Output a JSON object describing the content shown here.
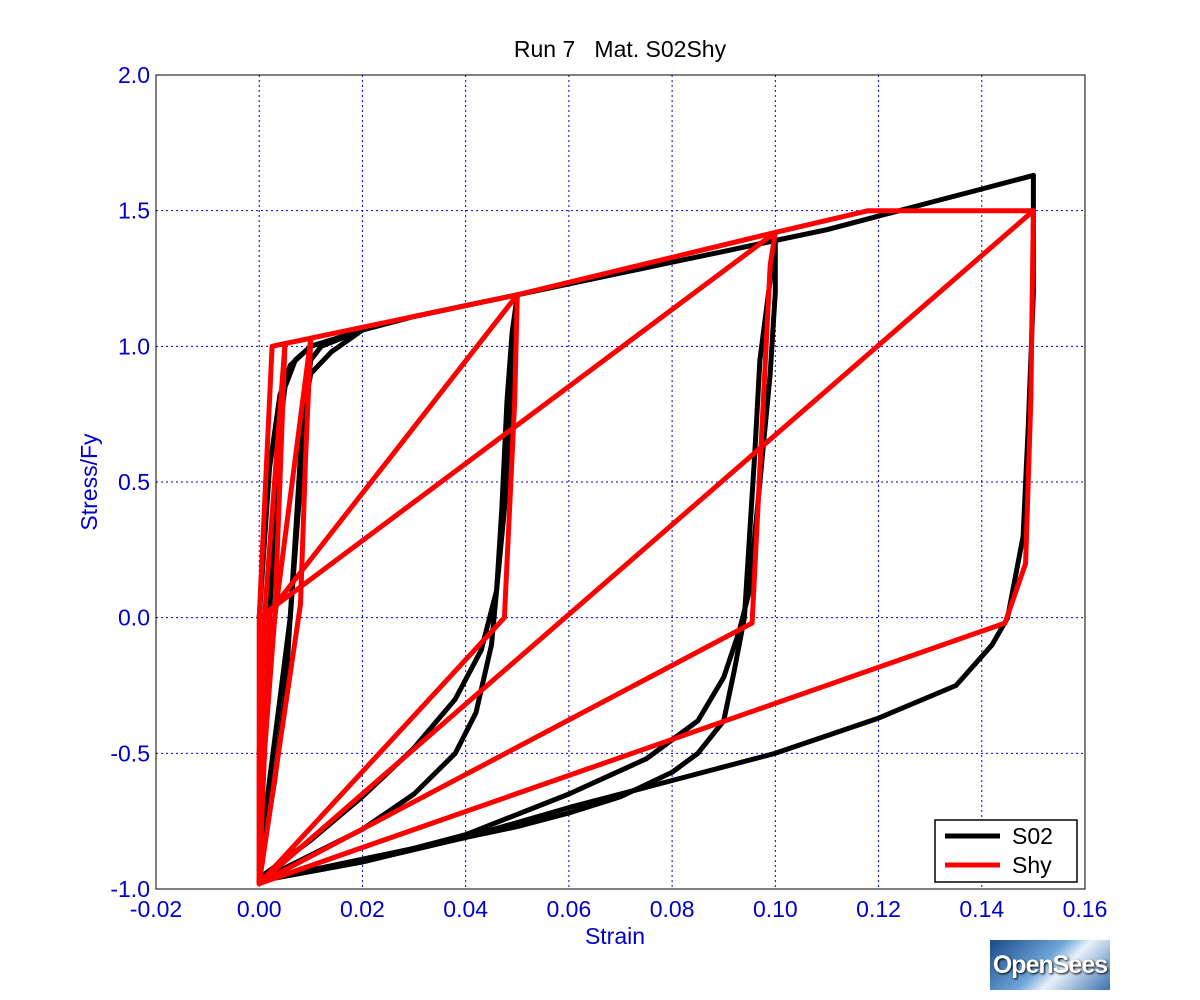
{
  "chart_data": {
    "type": "line",
    "title": "Run 7   Mat. S02Shy",
    "xlabel": "Strain",
    "ylabel": "Stress/Fy",
    "xlim": [
      -0.02,
      0.16
    ],
    "ylim": [
      -1.0,
      2.0
    ],
    "xticks": [
      "-0.02",
      "0.00",
      "0.02",
      "0.04",
      "0.06",
      "0.08",
      "0.10",
      "0.12",
      "0.14",
      "0.16"
    ],
    "yticks": [
      "-1.0",
      "-0.5",
      "0.0",
      "0.5",
      "1.0",
      "1.5",
      "2.0"
    ],
    "grid": true,
    "legend_position": "bottom-right",
    "series": [
      {
        "name": "S02",
        "color": "#000000",
        "curves": [
          [
            [
              0.0,
              0.0
            ],
            [
              0.002,
              0.55
            ],
            [
              0.004,
              0.82
            ],
            [
              0.006,
              0.93
            ],
            [
              0.01,
              1.0
            ],
            [
              0.015,
              1.03
            ],
            [
              0.02,
              1.06
            ],
            [
              0.03,
              1.11
            ],
            [
              0.04,
              1.15
            ],
            [
              0.05,
              1.19
            ],
            [
              0.06,
              1.23
            ],
            [
              0.07,
              1.27
            ],
            [
              0.08,
              1.31
            ],
            [
              0.09,
              1.35
            ],
            [
              0.1,
              1.39
            ],
            [
              0.11,
              1.43
            ],
            [
              0.12,
              1.48
            ],
            [
              0.13,
              1.53
            ],
            [
              0.14,
              1.58
            ],
            [
              0.15,
              1.63
            ]
          ],
          [
            [
              0.15,
              1.63
            ],
            [
              0.15,
              1.2
            ],
            [
              0.149,
              0.7
            ],
            [
              0.148,
              0.3
            ],
            [
              0.145,
              0.0
            ],
            [
              0.142,
              -0.1
            ],
            [
              0.135,
              -0.25
            ],
            [
              0.12,
              -0.37
            ],
            [
              0.1,
              -0.5
            ],
            [
              0.08,
              -0.6
            ],
            [
              0.06,
              -0.7
            ],
            [
              0.04,
              -0.81
            ],
            [
              0.02,
              -0.9
            ],
            [
              0.0,
              -0.97
            ]
          ],
          [
            [
              0.0,
              -0.97
            ],
            [
              0.03,
              -0.85
            ],
            [
              0.05,
              -0.77
            ],
            [
              0.06,
              -0.72
            ],
            [
              0.07,
              -0.66
            ],
            [
              0.08,
              -0.57
            ],
            [
              0.085,
              -0.5
            ],
            [
              0.09,
              -0.38
            ],
            [
              0.092,
              -0.2
            ],
            [
              0.094,
              0.0
            ],
            [
              0.095,
              0.3
            ],
            [
              0.096,
              0.6
            ],
            [
              0.097,
              0.95
            ],
            [
              0.1,
              1.39
            ]
          ],
          [
            [
              0.1,
              1.39
            ],
            [
              0.1,
              1.2
            ],
            [
              0.099,
              0.9
            ],
            [
              0.097,
              0.5
            ],
            [
              0.095,
              0.1
            ],
            [
              0.093,
              -0.05
            ],
            [
              0.09,
              -0.22
            ],
            [
              0.085,
              -0.38
            ],
            [
              0.075,
              -0.52
            ],
            [
              0.06,
              -0.65
            ],
            [
              0.04,
              -0.8
            ],
            [
              0.02,
              -0.9
            ],
            [
              0.0,
              -0.97
            ]
          ],
          [
            [
              0.0,
              -0.97
            ],
            [
              0.02,
              -0.78
            ],
            [
              0.03,
              -0.65
            ],
            [
              0.038,
              -0.5
            ],
            [
              0.042,
              -0.35
            ],
            [
              0.045,
              -0.1
            ],
            [
              0.046,
              0.1
            ],
            [
              0.047,
              0.4
            ],
            [
              0.048,
              0.8
            ],
            [
              0.049,
              1.05
            ],
            [
              0.05,
              1.19
            ]
          ],
          [
            [
              0.05,
              1.19
            ],
            [
              0.049,
              0.9
            ],
            [
              0.048,
              0.5
            ],
            [
              0.046,
              0.1
            ],
            [
              0.043,
              -0.12
            ],
            [
              0.038,
              -0.3
            ],
            [
              0.03,
              -0.48
            ],
            [
              0.02,
              -0.66
            ],
            [
              0.01,
              -0.82
            ],
            [
              0.0,
              -0.96
            ]
          ],
          [
            [
              0.0,
              -0.96
            ],
            [
              0.003,
              -0.6
            ],
            [
              0.005,
              -0.3
            ],
            [
              0.006,
              0.0
            ],
            [
              0.007,
              0.3
            ],
            [
              0.008,
              0.6
            ],
            [
              0.009,
              0.8
            ],
            [
              0.01,
              0.9
            ],
            [
              0.014,
              0.98
            ],
            [
              0.02,
              1.06
            ]
          ],
          [
            [
              0.02,
              1.06
            ],
            [
              0.012,
              1.0
            ],
            [
              0.01,
              0.95
            ],
            [
              0.009,
              0.8
            ],
            [
              0.008,
              0.5
            ],
            [
              0.006,
              0.0
            ],
            [
              0.004,
              -0.3
            ],
            [
              0.002,
              -0.6
            ],
            [
              0.0,
              -0.93
            ]
          ],
          [
            [
              0.0,
              -0.93
            ],
            [
              0.001,
              -0.5
            ],
            [
              0.002,
              0.0
            ],
            [
              0.003,
              0.4
            ],
            [
              0.004,
              0.7
            ],
            [
              0.005,
              0.85
            ],
            [
              0.007,
              0.95
            ],
            [
              0.01,
              1.0
            ]
          ]
        ]
      },
      {
        "name": "Shy",
        "color": "#ff0000",
        "curves": [
          [
            [
              0.0,
              0.0
            ],
            [
              0.0025,
              1.0
            ],
            [
              0.005,
              1.01
            ],
            [
              0.01,
              1.03
            ],
            [
              0.05,
              1.19
            ],
            [
              0.1,
              1.42
            ],
            [
              0.118,
              1.5
            ],
            [
              0.15,
              1.5
            ]
          ],
          [
            [
              0.15,
              1.5
            ],
            [
              0.1495,
              0.8
            ],
            [
              0.1485,
              0.2
            ],
            [
              0.1445,
              -0.02
            ],
            [
              0.0,
              -0.98
            ]
          ],
          [
            [
              0.0,
              -0.98
            ],
            [
              0.15,
              1.5
            ]
          ],
          [
            [
              0.0,
              -0.98
            ],
            [
              0.0,
              0.0
            ],
            [
              0.1,
              1.42
            ]
          ],
          [
            [
              0.1,
              1.42
            ],
            [
              0.099,
              1.3
            ],
            [
              0.0955,
              -0.02
            ],
            [
              0.0,
              -0.98
            ]
          ],
          [
            [
              0.0,
              -0.98
            ],
            [
              0.002,
              0.02
            ],
            [
              0.05,
              1.19
            ]
          ],
          [
            [
              0.05,
              1.19
            ],
            [
              0.0495,
              0.8
            ],
            [
              0.0475,
              0.0
            ],
            [
              0.0,
              -0.98
            ]
          ],
          [
            [
              0.0,
              -0.98
            ],
            [
              0.001,
              -0.5
            ],
            [
              0.003,
              0.0
            ],
            [
              0.01,
              1.03
            ]
          ],
          [
            [
              0.01,
              1.03
            ],
            [
              0.009,
              0.6
            ],
            [
              0.008,
              0.05
            ],
            [
              0.0,
              -0.98
            ]
          ],
          [
            [
              0.0,
              -0.98
            ],
            [
              0.0,
              -0.5
            ],
            [
              0.001,
              0.0
            ],
            [
              0.005,
              1.01
            ]
          ],
          [
            [
              0.005,
              1.01
            ],
            [
              0.004,
              0.5
            ],
            [
              0.003,
              0.0
            ],
            [
              0.0,
              -0.5
            ]
          ]
        ]
      }
    ]
  },
  "logo_text": "OpenSees"
}
